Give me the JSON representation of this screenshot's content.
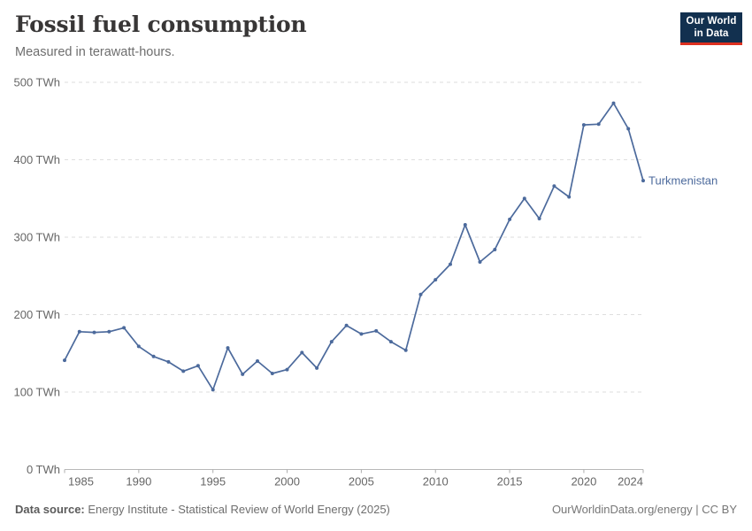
{
  "header": {
    "title": "Fossil fuel consumption",
    "subtitle": "Measured in terawatt-hours."
  },
  "logo": {
    "line1": "Our World",
    "line2": "in Data"
  },
  "chart_data": {
    "type": "line",
    "title": "Fossil fuel consumption",
    "subtitle": "Measured in terawatt-hours.",
    "unit": "TWh",
    "x": [
      1985,
      1986,
      1987,
      1988,
      1989,
      1990,
      1991,
      1992,
      1993,
      1994,
      1995,
      1996,
      1997,
      1998,
      1999,
      2000,
      2001,
      2002,
      2003,
      2004,
      2005,
      2006,
      2007,
      2008,
      2009,
      2010,
      2011,
      2012,
      2013,
      2014,
      2015,
      2016,
      2017,
      2018,
      2019,
      2020,
      2021,
      2022,
      2023,
      2024
    ],
    "series": [
      {
        "name": "Turkmenistan",
        "values": [
          141,
          178,
          177,
          178,
          183,
          159,
          146,
          139,
          127,
          134,
          103,
          157,
          123,
          140,
          124,
          129,
          151,
          131,
          165,
          186,
          175,
          179,
          165,
          154,
          226,
          245,
          265,
          316,
          268,
          284,
          323,
          350,
          324,
          366,
          352,
          445,
          446,
          473,
          440,
          373
        ]
      }
    ],
    "ylim": [
      0,
      500
    ],
    "xlim": [
      1985,
      2024
    ],
    "yticks": [
      0,
      100,
      200,
      300,
      400,
      500
    ],
    "ytick_labels": [
      "0 TWh",
      "100 TWh",
      "200 TWh",
      "300 TWh",
      "400 TWh",
      "500 TWh"
    ],
    "xticks": [
      1985,
      1990,
      1995,
      2000,
      2005,
      2010,
      2015,
      2020,
      2024
    ],
    "grid": true,
    "grid_style": "dashed",
    "legend": "end-of-line-label",
    "entity_label": "Turkmenistan"
  },
  "colors": {
    "line": "#4c6a9c",
    "entity_label": "#4c6a9c",
    "gridline": "#dedede",
    "axis": "#b8b8b8",
    "tick": "#adadad",
    "tick_label": "#666666",
    "logo_bg": "#12304f",
    "logo_red": "#dd3020"
  },
  "footer": {
    "source_label": "Data source:",
    "source_text": " Energy Institute - Statistical Review of World Energy (2025)",
    "credit": "OurWorldinData.org/energy | CC BY"
  }
}
